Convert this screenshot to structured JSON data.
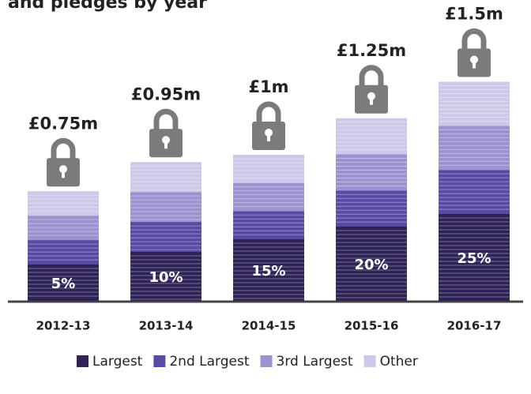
{
  "chart_data": {
    "type": "paper-stack",
    "title": "and pledges by year",
    "categories": [
      "2012-13",
      "2013-14",
      "2014-15",
      "2015-16",
      "2016-17"
    ],
    "values": [
      0.75,
      0.95,
      1,
      1.25,
      1.5
    ],
    "value_labels": [
      "£0.75m",
      "£0.95m",
      "£1m",
      "£1.25m",
      "£1.5m"
    ],
    "series": [
      {
        "name": "Largest",
        "color": "#2e2257",
        "values": [
          5,
          10,
          15,
          20,
          25
        ],
        "value_labels": [
          "5%",
          "10%",
          "15%",
          "20%",
          "25%"
        ]
      },
      {
        "name": "2nd Largest",
        "color": "#5b4aa5"
      },
      {
        "name": "3rd Largest",
        "color": "#9d92cf"
      },
      {
        "name": "Other",
        "color": "#cfc8e8"
      }
    ],
    "lock_color": "#7b7b7b"
  }
}
